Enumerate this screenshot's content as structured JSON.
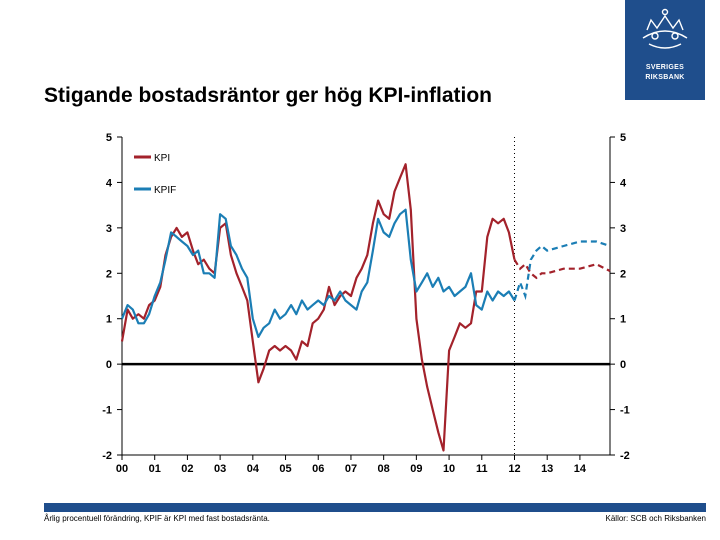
{
  "logo": {
    "line1": "SVERIGES",
    "line2": "RIKSBANK"
  },
  "title": "Stigande bostadsräntor ger hög KPI-inflation",
  "footnote": "Årlig procentuell förändring, KPIF är KPI med fast bostadsränta.",
  "source": "Källor: SCB och Riksbanken",
  "colors": {
    "kpi": "#a3222b",
    "kpif": "#1b7eb5",
    "brand": "#1f4e8c"
  },
  "chart_data": {
    "type": "line",
    "title": "Stigande bostadsräntor ger hög KPI-inflation",
    "xlabel": "",
    "ylabel": "",
    "xlim": [
      2000,
      2014.92
    ],
    "ylim": [
      -2,
      5
    ],
    "x_ticks": [
      {
        "value": 2000,
        "label": "00"
      },
      {
        "value": 2001,
        "label": "01"
      },
      {
        "value": 2002,
        "label": "02"
      },
      {
        "value": 2003,
        "label": "03"
      },
      {
        "value": 2004,
        "label": "04"
      },
      {
        "value": 2005,
        "label": "05"
      },
      {
        "value": 2006,
        "label": "06"
      },
      {
        "value": 2007,
        "label": "07"
      },
      {
        "value": 2008,
        "label": "08"
      },
      {
        "value": 2009,
        "label": "09"
      },
      {
        "value": 2010,
        "label": "10"
      },
      {
        "value": 2011,
        "label": "11"
      },
      {
        "value": 2012,
        "label": "12"
      },
      {
        "value": 2013,
        "label": "13"
      },
      {
        "value": 2014,
        "label": "14"
      }
    ],
    "y_ticks": [
      {
        "value": 5,
        "label": "5"
      },
      {
        "value": 4,
        "label": "4"
      },
      {
        "value": 3,
        "label": "3"
      },
      {
        "value": 2,
        "label": "2"
      },
      {
        "value": 1,
        "label": "1"
      },
      {
        "value": 0,
        "label": "0"
      },
      {
        "value": -1,
        "label": "-1"
      },
      {
        "value": -2,
        "label": "-2"
      }
    ],
    "forecast_start": 2012.0,
    "legend": [
      {
        "name": "KPI",
        "color": "#a3222b"
      },
      {
        "name": "KPIF",
        "color": "#1b7eb5"
      }
    ],
    "series": [
      {
        "name": "KPI",
        "color": "#a3222b",
        "points": [
          [
            2000.0,
            0.5
          ],
          [
            2000.17,
            1.2
          ],
          [
            2000.33,
            1.0
          ],
          [
            2000.5,
            1.1
          ],
          [
            2000.67,
            1.0
          ],
          [
            2000.83,
            1.3
          ],
          [
            2001.0,
            1.4
          ],
          [
            2001.17,
            1.7
          ],
          [
            2001.33,
            2.4
          ],
          [
            2001.5,
            2.8
          ],
          [
            2001.67,
            3.0
          ],
          [
            2001.83,
            2.8
          ],
          [
            2002.0,
            2.9
          ],
          [
            2002.17,
            2.5
          ],
          [
            2002.33,
            2.2
          ],
          [
            2002.5,
            2.3
          ],
          [
            2002.67,
            2.1
          ],
          [
            2002.83,
            2.0
          ],
          [
            2003.0,
            3.0
          ],
          [
            2003.17,
            3.1
          ],
          [
            2003.33,
            2.4
          ],
          [
            2003.5,
            2.0
          ],
          [
            2003.67,
            1.7
          ],
          [
            2003.83,
            1.4
          ],
          [
            2004.0,
            0.5
          ],
          [
            2004.17,
            -0.4
          ],
          [
            2004.33,
            -0.1
          ],
          [
            2004.5,
            0.3
          ],
          [
            2004.67,
            0.4
          ],
          [
            2004.83,
            0.3
          ],
          [
            2005.0,
            0.4
          ],
          [
            2005.17,
            0.3
          ],
          [
            2005.33,
            0.1
          ],
          [
            2005.5,
            0.5
          ],
          [
            2005.67,
            0.4
          ],
          [
            2005.83,
            0.9
          ],
          [
            2006.0,
            1.0
          ],
          [
            2006.17,
            1.2
          ],
          [
            2006.33,
            1.7
          ],
          [
            2006.5,
            1.3
          ],
          [
            2006.67,
            1.5
          ],
          [
            2006.83,
            1.6
          ],
          [
            2007.0,
            1.5
          ],
          [
            2007.17,
            1.9
          ],
          [
            2007.33,
            2.1
          ],
          [
            2007.5,
            2.4
          ],
          [
            2007.67,
            3.1
          ],
          [
            2007.83,
            3.6
          ],
          [
            2008.0,
            3.3
          ],
          [
            2008.17,
            3.2
          ],
          [
            2008.33,
            3.8
          ],
          [
            2008.5,
            4.1
          ],
          [
            2008.67,
            4.4
          ],
          [
            2008.83,
            3.4
          ],
          [
            2009.0,
            1.0
          ],
          [
            2009.17,
            0.1
          ],
          [
            2009.33,
            -0.5
          ],
          [
            2009.5,
            -1.0
          ],
          [
            2009.67,
            -1.5
          ],
          [
            2009.83,
            -1.9
          ],
          [
            2010.0,
            0.3
          ],
          [
            2010.17,
            0.6
          ],
          [
            2010.33,
            0.9
          ],
          [
            2010.5,
            0.8
          ],
          [
            2010.67,
            0.9
          ],
          [
            2010.83,
            1.6
          ],
          [
            2011.0,
            1.6
          ],
          [
            2011.17,
            2.8
          ],
          [
            2011.33,
            3.2
          ],
          [
            2011.5,
            3.1
          ],
          [
            2011.67,
            3.2
          ],
          [
            2011.83,
            2.9
          ],
          [
            2012.0,
            2.3
          ]
        ],
        "forecast": [
          [
            2012.0,
            2.3
          ],
          [
            2012.17,
            2.1
          ],
          [
            2012.33,
            2.2
          ],
          [
            2012.5,
            2.0
          ],
          [
            2012.67,
            1.9
          ],
          [
            2012.83,
            2.0
          ],
          [
            2013.0,
            2.0
          ],
          [
            2013.5,
            2.1
          ],
          [
            2014.0,
            2.1
          ],
          [
            2014.5,
            2.2
          ],
          [
            2014.92,
            2.05
          ]
        ]
      },
      {
        "name": "KPIF",
        "color": "#1b7eb5",
        "points": [
          [
            2000.0,
            1.0
          ],
          [
            2000.17,
            1.3
          ],
          [
            2000.33,
            1.2
          ],
          [
            2000.5,
            0.9
          ],
          [
            2000.67,
            0.9
          ],
          [
            2000.83,
            1.1
          ],
          [
            2001.0,
            1.5
          ],
          [
            2001.17,
            1.8
          ],
          [
            2001.33,
            2.3
          ],
          [
            2001.5,
            2.9
          ],
          [
            2001.67,
            2.8
          ],
          [
            2001.83,
            2.7
          ],
          [
            2002.0,
            2.6
          ],
          [
            2002.17,
            2.4
          ],
          [
            2002.33,
            2.5
          ],
          [
            2002.5,
            2.0
          ],
          [
            2002.67,
            2.0
          ],
          [
            2002.83,
            1.9
          ],
          [
            2003.0,
            3.3
          ],
          [
            2003.17,
            3.2
          ],
          [
            2003.33,
            2.6
          ],
          [
            2003.5,
            2.4
          ],
          [
            2003.67,
            2.1
          ],
          [
            2003.83,
            1.9
          ],
          [
            2004.0,
            1.0
          ],
          [
            2004.17,
            0.6
          ],
          [
            2004.33,
            0.8
          ],
          [
            2004.5,
            0.9
          ],
          [
            2004.67,
            1.2
          ],
          [
            2004.83,
            1.0
          ],
          [
            2005.0,
            1.1
          ],
          [
            2005.17,
            1.3
          ],
          [
            2005.33,
            1.1
          ],
          [
            2005.5,
            1.4
          ],
          [
            2005.67,
            1.2
          ],
          [
            2005.83,
            1.3
          ],
          [
            2006.0,
            1.4
          ],
          [
            2006.17,
            1.3
          ],
          [
            2006.33,
            1.5
          ],
          [
            2006.5,
            1.4
          ],
          [
            2006.67,
            1.6
          ],
          [
            2006.83,
            1.4
          ],
          [
            2007.0,
            1.3
          ],
          [
            2007.17,
            1.2
          ],
          [
            2007.33,
            1.6
          ],
          [
            2007.5,
            1.8
          ],
          [
            2007.67,
            2.5
          ],
          [
            2007.83,
            3.2
          ],
          [
            2008.0,
            2.9
          ],
          [
            2008.17,
            2.8
          ],
          [
            2008.33,
            3.1
          ],
          [
            2008.5,
            3.3
          ],
          [
            2008.67,
            3.4
          ],
          [
            2008.83,
            2.3
          ],
          [
            2009.0,
            1.6
          ],
          [
            2009.17,
            1.8
          ],
          [
            2009.33,
            2.0
          ],
          [
            2009.5,
            1.7
          ],
          [
            2009.67,
            1.9
          ],
          [
            2009.83,
            1.6
          ],
          [
            2010.0,
            1.7
          ],
          [
            2010.17,
            1.5
          ],
          [
            2010.33,
            1.6
          ],
          [
            2010.5,
            1.7
          ],
          [
            2010.67,
            2.0
          ],
          [
            2010.83,
            1.3
          ],
          [
            2011.0,
            1.2
          ],
          [
            2011.17,
            1.6
          ],
          [
            2011.33,
            1.4
          ],
          [
            2011.5,
            1.6
          ],
          [
            2011.67,
            1.5
          ],
          [
            2011.83,
            1.6
          ],
          [
            2012.0,
            1.4
          ]
        ],
        "forecast": [
          [
            2012.0,
            1.4
          ],
          [
            2012.17,
            1.8
          ],
          [
            2012.33,
            1.5
          ],
          [
            2012.5,
            2.3
          ],
          [
            2012.67,
            2.5
          ],
          [
            2012.83,
            2.6
          ],
          [
            2013.0,
            2.5
          ],
          [
            2013.5,
            2.6
          ],
          [
            2014.0,
            2.7
          ],
          [
            2014.5,
            2.7
          ],
          [
            2014.92,
            2.6
          ]
        ]
      }
    ]
  }
}
